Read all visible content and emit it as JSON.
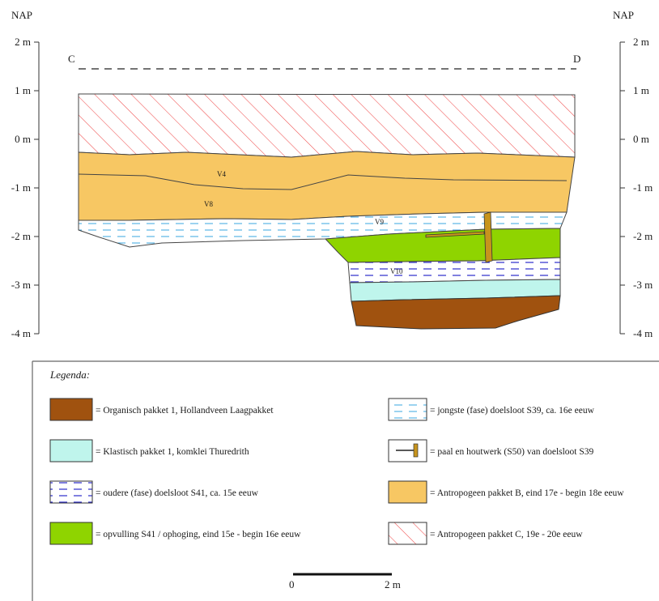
{
  "axis": {
    "left_title": "NAP",
    "right_title": "NAP",
    "ticks": [
      "2 m",
      "1 m",
      "0 m",
      "-1 m",
      "-2 m",
      "-3 m",
      "-4 m"
    ]
  },
  "section": {
    "start_label": "C",
    "end_label": "D"
  },
  "layer_labels": [
    "V4",
    "V8",
    "V9",
    "V10"
  ],
  "legend": {
    "title": "Legenda:",
    "items": [
      {
        "text": "= Organisch pakket 1, Hollandveen Laagpakket",
        "fill": "#a0520f"
      },
      {
        "text": "= Klastisch pakket 1, komklei Thuredrith",
        "fill": "#bff5ec"
      },
      {
        "text": "= oudere (fase) doelsloot S41, ca. 15e eeuw",
        "fill": "#ffffff",
        "pattern": "dashed-blue-dark"
      },
      {
        "text": "= opvulling S41 / ophoging, eind 15e - begin 16e eeuw",
        "fill": "#8fd400"
      },
      {
        "text": "= jongste (fase) doelsloot S39, ca. 16e eeuw",
        "fill": "#ffffff",
        "pattern": "dashed-blue-light"
      },
      {
        "text": "= paal en houtwerk (S50) van doelsloot S39",
        "fill": "#ffffff",
        "pattern": "post-symbol"
      },
      {
        "text": "= Antropogeen pakket B, eind 17e - begin 18e eeuw",
        "fill": "#f7c763"
      },
      {
        "text": "= Antropogeen pakket C, 19e - 20e eeuw",
        "fill": "#ffffff",
        "pattern": "red-hatch"
      }
    ]
  },
  "scale_bar": {
    "start": "0",
    "end": "2 m"
  },
  "colors": {
    "organisch": "#a0520f",
    "klastisch": "#bff5ec",
    "opvulling": "#8fd400",
    "antropogeen_b": "#f7c763",
    "hatch_red": "#f05050",
    "dash_blue": "#2a2acc",
    "dash_light": "#3aa7e0",
    "wood": "#c7941d"
  }
}
